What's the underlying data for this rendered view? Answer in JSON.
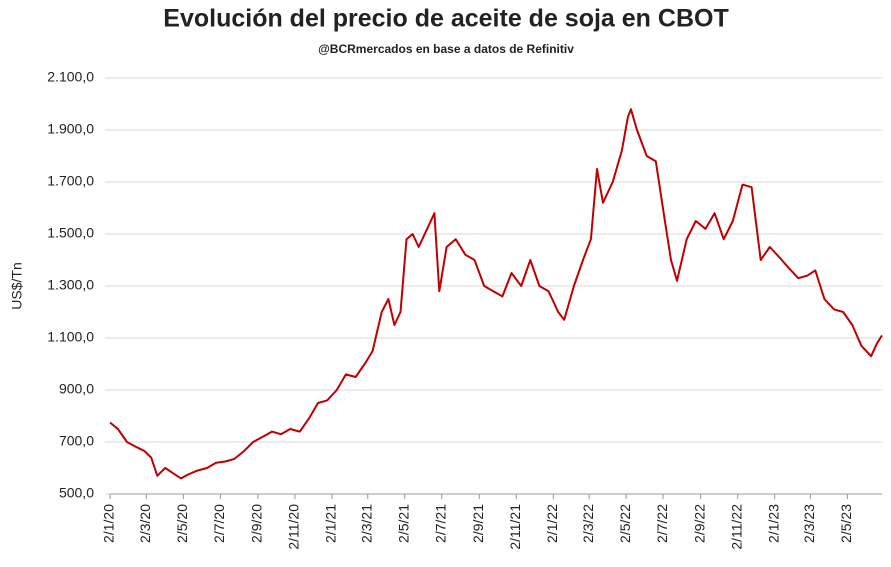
{
  "chart_data": {
    "type": "line",
    "title": "Evolución del precio de aceite de soja en CBOT",
    "subtitle": "@BCRmercados  en base a datos de Refinitiv",
    "y_label": "US$/Tn",
    "x": [
      "2/1/20",
      "15/1/20",
      "30/1/20",
      "15/2/20",
      "28/2/20",
      "10/3/20",
      "20/3/20",
      "2/4/20",
      "15/4/20",
      "28/4/20",
      "10/5/20",
      "25/5/20",
      "10/6/20",
      "25/6/20",
      "10/7/20",
      "25/7/20",
      "10/8/20",
      "25/8/20",
      "10/9/20",
      "25/9/20",
      "10/10/20",
      "25/10/20",
      "10/11/20",
      "25/11/20",
      "10/12/20",
      "25/12/20",
      "10/1/21",
      "25/1/21",
      "10/2/21",
      "25/2/21",
      "10/3/21",
      "25/3/21",
      "5/4/21",
      "15/4/21",
      "25/4/21",
      "5/5/21",
      "15/5/21",
      "25/5/21",
      "10/6/21",
      "20/6/21",
      "28/6/21",
      "10/7/21",
      "25/7/21",
      "10/8/21",
      "25/8/21",
      "10/9/21",
      "25/9/21",
      "10/10/21",
      "25/10/21",
      "10/11/21",
      "25/11/21",
      "10/12/21",
      "25/12/21",
      "10/1/22",
      "20/1/22",
      "5/2/22",
      "20/2/22",
      "5/3/22",
      "15/3/22",
      "25/3/22",
      "10/4/22",
      "25/4/22",
      "5/5/22",
      "10/5/22",
      "20/5/22",
      "5/6/22",
      "20/6/22",
      "5/7/22",
      "15/7/22",
      "25/7/22",
      "10/8/22",
      "25/8/22",
      "10/9/22",
      "25/9/22",
      "10/10/22",
      "25/10/22",
      "10/11/22",
      "25/11/22",
      "10/12/22",
      "25/12/22",
      "10/1/23",
      "25/1/23",
      "10/2/23",
      "25/2/23",
      "10/3/23",
      "25/3/23",
      "10/4/23",
      "25/4/23",
      "10/5/23",
      "25/5/23",
      "10/6/23",
      "20/6/23",
      "28/6/23"
    ],
    "series": [
      {
        "name": "Aceite de soja",
        "color": "#c00000",
        "values": [
          775,
          750,
          700,
          680,
          665,
          640,
          570,
          600,
          580,
          560,
          575,
          590,
          600,
          620,
          625,
          635,
          665,
          700,
          720,
          740,
          730,
          750,
          740,
          790,
          850,
          860,
          900,
          960,
          950,
          1000,
          1050,
          1200,
          1250,
          1150,
          1200,
          1480,
          1500,
          1450,
          1530,
          1580,
          1280,
          1450,
          1480,
          1420,
          1400,
          1300,
          1280,
          1260,
          1350,
          1300,
          1400,
          1300,
          1280,
          1200,
          1170,
          1300,
          1400,
          1480,
          1750,
          1620,
          1700,
          1820,
          1950,
          1980,
          1900,
          1800,
          1780,
          1550,
          1400,
          1320,
          1480,
          1550,
          1520,
          1580,
          1480,
          1550,
          1690,
          1680,
          1400,
          1450,
          1410,
          1370,
          1330,
          1340,
          1360,
          1250,
          1210,
          1200,
          1150,
          1070,
          1030,
          1080,
          1110
        ]
      }
    ],
    "xlim": [
      "2/1/20",
      "28/6/23"
    ],
    "xticks": [
      "2/1/20",
      "2/3/20",
      "2/5/20",
      "2/7/20",
      "2/9/20",
      "2/11/20",
      "2/1/21",
      "2/3/21",
      "2/5/21",
      "2/7/21",
      "2/9/21",
      "2/11/21",
      "2/1/22",
      "2/3/22",
      "2/5/22",
      "2/7/22",
      "2/9/22",
      "2/11/22",
      "2/1/23",
      "2/3/23",
      "2/5/23"
    ],
    "ylim": [
      500,
      2100
    ],
    "yticks": [
      {
        "value": 500,
        "label": "500,0"
      },
      {
        "value": 700,
        "label": "700,0"
      },
      {
        "value": 900,
        "label": "900,0"
      },
      {
        "value": 1100,
        "label": "1.100,0"
      },
      {
        "value": 1300,
        "label": "1.300,0"
      },
      {
        "value": 1500,
        "label": "1.500,0"
      },
      {
        "value": 1700,
        "label": "1.700,0"
      },
      {
        "value": 1900,
        "label": "1.900,0"
      },
      {
        "value": 2100,
        "label": "2.100,0"
      }
    ],
    "grid": true
  }
}
